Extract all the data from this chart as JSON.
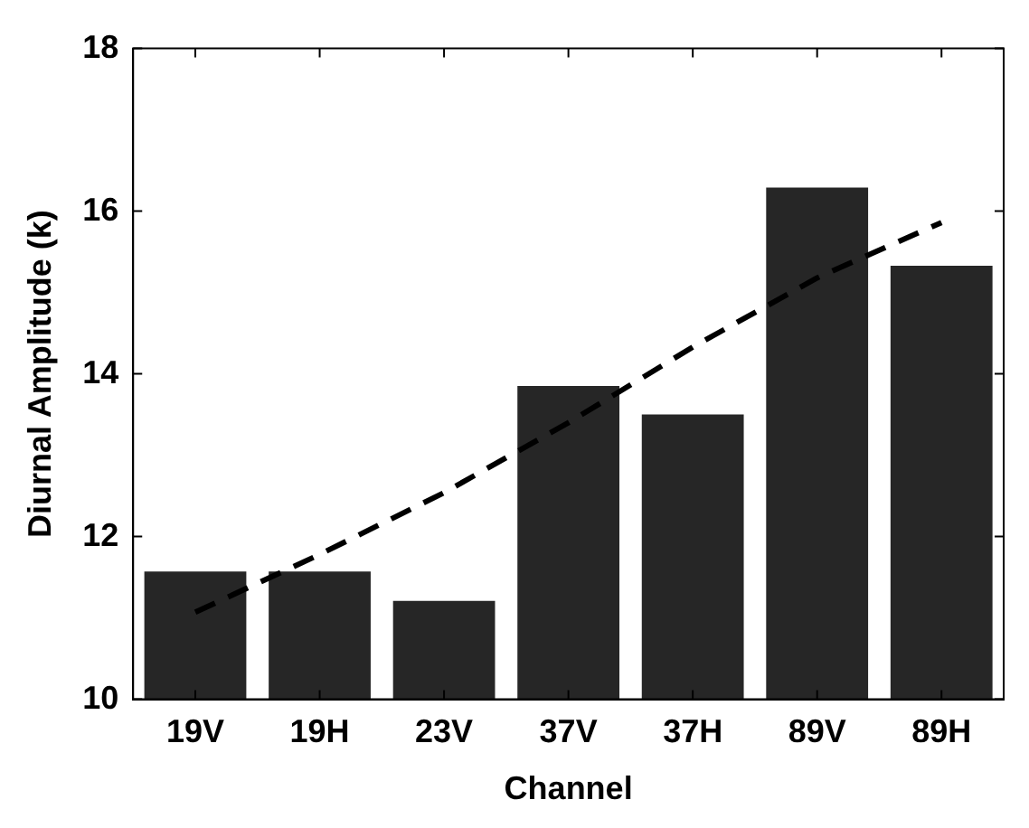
{
  "chart_data": {
    "type": "bar",
    "xlabel": "Channel",
    "ylabel": "Diurnal Amplitude (k)",
    "categories": [
      "19V",
      "19H",
      "23V",
      "37V",
      "37H",
      "89V",
      "89H"
    ],
    "ylim": [
      10,
      18
    ],
    "yticks": [
      10,
      12,
      14,
      16,
      18
    ],
    "grid": false,
    "legend": false,
    "series": [
      {
        "color": "#262626",
        "values": [
          11.57,
          11.57,
          11.21,
          13.85,
          13.5,
          16.29,
          15.33
        ]
      },
      {
        "type": "line",
        "values": [
          11.07,
          11.78,
          12.54,
          13.4,
          14.33,
          15.18,
          15.86
        ],
        "color": "#000000",
        "line_style": "dashed",
        "marker": "none"
      }
    ]
  }
}
